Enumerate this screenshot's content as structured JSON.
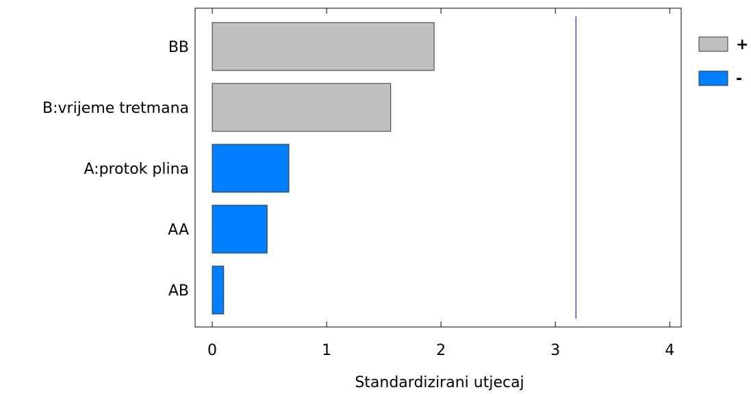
{
  "chart_data": {
    "type": "bar",
    "orientation": "horizontal",
    "title": "",
    "xlabel": "Standardizirani utjecaj",
    "ylabel": "",
    "categories": [
      "BB",
      "B:vrijeme tretmana",
      "A:protok plina",
      "AA",
      "AB"
    ],
    "values": [
      1.94,
      1.56,
      0.67,
      0.48,
      0.1
    ],
    "signs": [
      "+",
      "+",
      "-",
      "-",
      "-"
    ],
    "xlim": [
      -0.15,
      4.1
    ],
    "xticks": [
      0,
      1,
      2,
      3,
      4
    ],
    "reference_line": 3.18,
    "grid": false,
    "legend": {
      "placement": "right",
      "entries": [
        {
          "label": "+",
          "color": "#c0c0c0"
        },
        {
          "label": "-",
          "color": "#0080ff"
        }
      ]
    },
    "colors": {
      "positive": "#c0c0c0",
      "negative": "#0080ff",
      "reference_line": "#2020c0",
      "bar_stroke": "#333333"
    }
  }
}
